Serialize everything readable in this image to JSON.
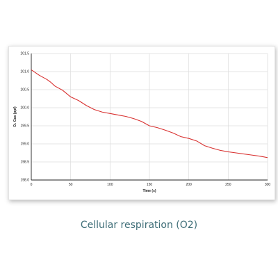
{
  "caption": "Cellular respiration (O2)",
  "colors": {
    "line": "#d8302f",
    "grid": "#dcdcdc",
    "axis": "#222222"
  },
  "chart_data": {
    "type": "line",
    "title": "",
    "xlabel": "Time (s)",
    "ylabel": "O₂ Gas (ppt)",
    "xlim": [
      0,
      300
    ],
    "ylim": [
      198.0,
      201.5
    ],
    "x_ticks": [
      "0",
      "50",
      "100",
      "150",
      "200",
      "250",
      "300"
    ],
    "y_ticks": [
      "198.0",
      "198.5",
      "199.0",
      "199.5",
      "200.0",
      "200.5",
      "201.0",
      "201.5"
    ],
    "grid": true,
    "series": [
      {
        "x": [
          0,
          10,
          20,
          25,
          30,
          40,
          50,
          60,
          70,
          80,
          90,
          100,
          110,
          120,
          130,
          140,
          150,
          160,
          170,
          180,
          190,
          200,
          210,
          220,
          230,
          240,
          250,
          260,
          270,
          280,
          290,
          300
        ],
        "y": [
          201.05,
          200.9,
          200.78,
          200.7,
          200.6,
          200.48,
          200.3,
          200.2,
          200.06,
          199.95,
          199.88,
          199.84,
          199.8,
          199.76,
          199.7,
          199.62,
          199.5,
          199.45,
          199.38,
          199.3,
          199.2,
          199.15,
          199.08,
          198.95,
          198.88,
          198.82,
          198.78,
          198.75,
          198.72,
          198.69,
          198.66,
          198.62
        ]
      }
    ]
  }
}
